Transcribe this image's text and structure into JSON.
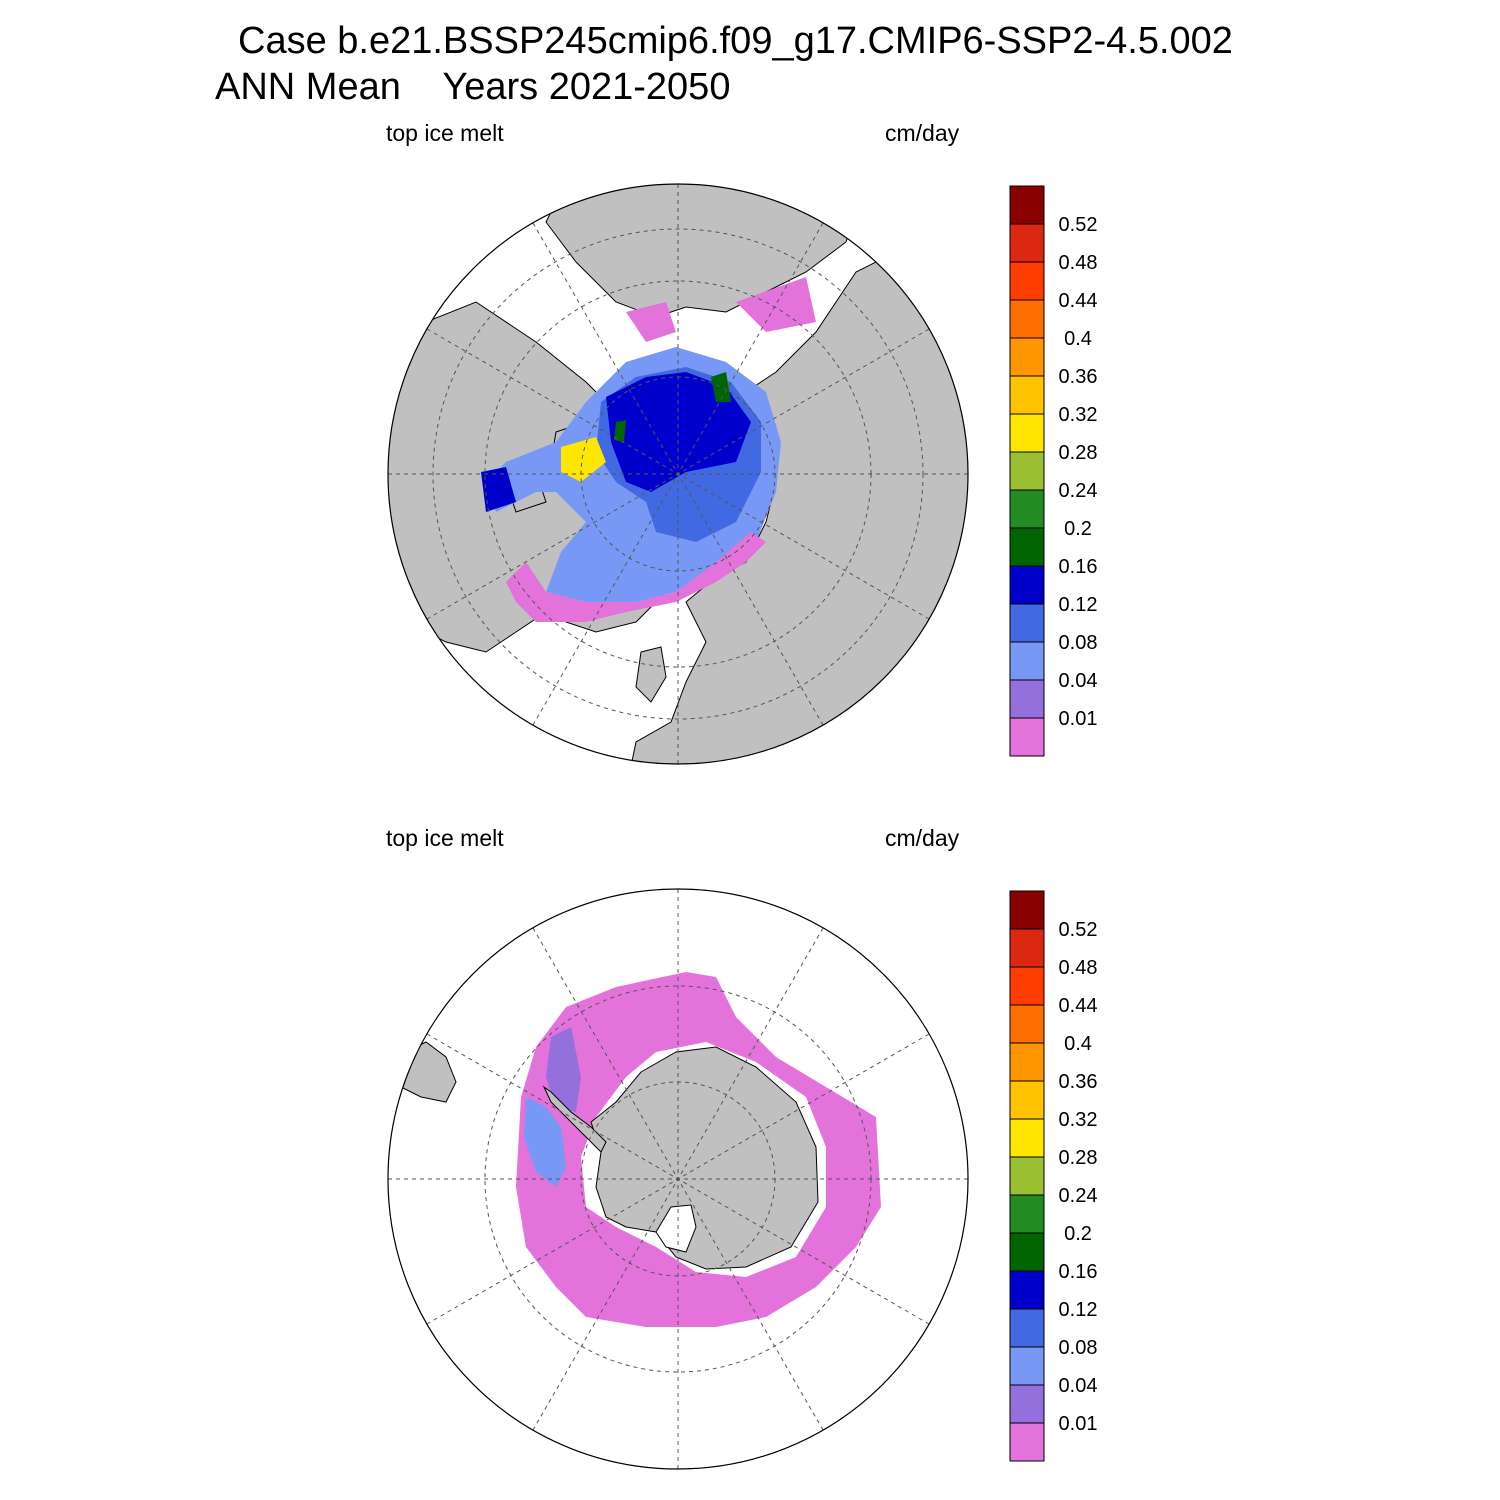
{
  "title": {
    "line1": "Case b.e21.BSSP245cmip6.f09_g17.CMIP6-SSP2-4.5.002",
    "line2": "ANN Mean    Years 2021-2050"
  },
  "panels": [
    {
      "hemisphere": "north",
      "left_label": "top ice melt",
      "right_label": "cm/day"
    },
    {
      "hemisphere": "south",
      "left_label": "top ice melt",
      "right_label": "cm/day"
    }
  ],
  "colorbar": {
    "labels": [
      "0.52",
      "0.48",
      "0.44",
      "0.4",
      "0.36",
      "0.32",
      "0.28",
      "0.24",
      "0.2",
      "0.16",
      "0.12",
      "0.08",
      "0.04",
      "0.01"
    ],
    "colors": [
      "#8b0000",
      "#dc2810",
      "#ff3c00",
      "#ff6e00",
      "#ff9600",
      "#ffc300",
      "#ffe600",
      "#9bbf32",
      "#228b22",
      "#006400",
      "#0000cd",
      "#4169e1",
      "#7799f5",
      "#9370db",
      "#e372db"
    ]
  },
  "colors": {
    "land": "#c0c0c0",
    "ocean": "#ffffff",
    "grid": "#555555"
  }
}
